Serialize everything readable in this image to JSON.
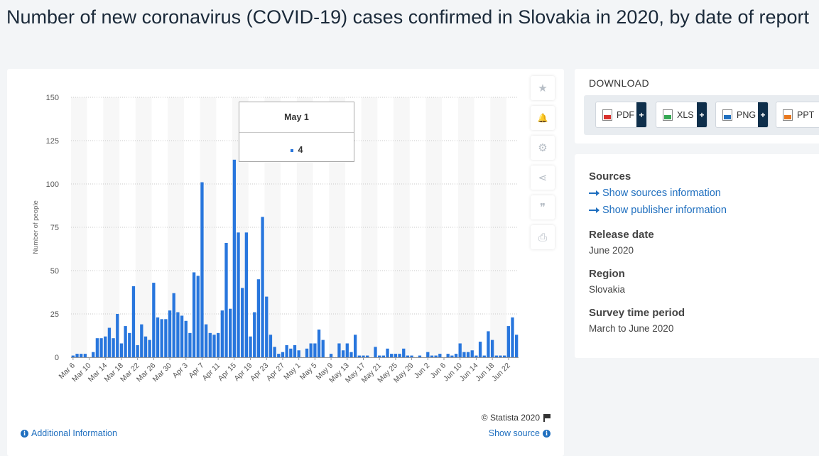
{
  "page": {
    "title": "Number of new coronavirus (COVID-19) cases confirmed in Slovakia in 2020, by date of report"
  },
  "chart_data": {
    "type": "bar",
    "title": "",
    "xlabel": "",
    "ylabel": "Number of people",
    "ylim": [
      0,
      150
    ],
    "yticks": [
      0,
      25,
      50,
      75,
      100,
      125,
      150
    ],
    "grid": true,
    "bar_color": "#2876dd",
    "tick_labels": [
      "Mar 6",
      "Mar 10",
      "Mar 14",
      "Mar 18",
      "Mar 22",
      "Mar 26",
      "Mar 30",
      "Apr 3",
      "Apr 7",
      "Apr 11",
      "Apr 15",
      "Apr 19",
      "Apr 23",
      "Apr 27",
      "May 1",
      "May 5",
      "May 9",
      "May 13",
      "May 17",
      "May 21",
      "May 25",
      "May 29",
      "Jun 2",
      "Jun 6",
      "Jun 10",
      "Jun 14",
      "Jun 18",
      "Jun 22"
    ],
    "categories": [
      "Mar 6",
      "Mar 7",
      "Mar 8",
      "Mar 9",
      "Mar 10",
      "Mar 11",
      "Mar 12",
      "Mar 13",
      "Mar 14",
      "Mar 15",
      "Mar 16",
      "Mar 17",
      "Mar 18",
      "Mar 19",
      "Mar 20",
      "Mar 21",
      "Mar 22",
      "Mar 23",
      "Mar 24",
      "Mar 25",
      "Mar 26",
      "Mar 27",
      "Mar 28",
      "Mar 29",
      "Mar 30",
      "Mar 31",
      "Apr 1",
      "Apr 2",
      "Apr 3",
      "Apr 4",
      "Apr 5",
      "Apr 6",
      "Apr 7",
      "Apr 8",
      "Apr 9",
      "Apr 10",
      "Apr 11",
      "Apr 12",
      "Apr 13",
      "Apr 14",
      "Apr 15",
      "Apr 16",
      "Apr 17",
      "Apr 18",
      "Apr 19",
      "Apr 20",
      "Apr 21",
      "Apr 22",
      "Apr 23",
      "Apr 24",
      "Apr 25",
      "Apr 26",
      "Apr 27",
      "Apr 28",
      "Apr 29",
      "Apr 30",
      "May 1",
      "May 2",
      "May 3",
      "May 4",
      "May 5",
      "May 6",
      "May 7",
      "May 8",
      "May 9",
      "May 10",
      "May 11",
      "May 12",
      "May 13",
      "May 14",
      "May 15",
      "May 16",
      "May 17",
      "May 18",
      "May 19",
      "May 20",
      "May 21",
      "May 22",
      "May 23",
      "May 24",
      "May 25",
      "May 26",
      "May 27",
      "May 28",
      "May 29",
      "May 30",
      "May 31",
      "Jun 1",
      "Jun 2",
      "Jun 3",
      "Jun 4",
      "Jun 5",
      "Jun 6",
      "Jun 7",
      "Jun 8",
      "Jun 9",
      "Jun 10",
      "Jun 11",
      "Jun 12",
      "Jun 13",
      "Jun 14",
      "Jun 15",
      "Jun 16",
      "Jun 17",
      "Jun 18",
      "Jun 19",
      "Jun 20",
      "Jun 21",
      "Jun 22",
      "Jun 23",
      "Jun 24"
    ],
    "values": [
      1,
      2,
      2,
      2,
      0,
      3,
      11,
      11,
      12,
      17,
      11,
      25,
      8,
      18,
      14,
      41,
      7,
      19,
      12,
      10,
      43,
      23,
      22,
      22,
      27,
      37,
      26,
      24,
      21,
      14,
      49,
      47,
      101,
      19,
      14,
      13,
      14,
      27,
      66,
      28,
      114,
      72,
      40,
      72,
      12,
      26,
      45,
      81,
      35,
      13,
      6,
      2,
      3,
      7,
      5,
      7,
      4,
      0,
      5,
      8,
      8,
      16,
      10,
      0,
      2,
      0,
      8,
      4,
      8,
      3,
      13,
      1,
      1,
      1,
      0,
      6,
      1,
      1,
      5,
      2,
      2,
      2,
      5,
      1,
      1,
      0,
      1,
      0,
      3,
      1,
      1,
      2,
      0,
      2,
      1,
      2,
      8,
      3,
      3,
      4,
      1,
      9,
      1,
      15,
      10,
      1,
      1,
      1,
      18,
      23,
      13
    ],
    "highlight": {
      "category": "May 1",
      "value": 4
    }
  },
  "tooltip": {
    "date": "May 1",
    "value": "4"
  },
  "toolbar": {
    "icons": [
      "star-icon",
      "bell-icon",
      "gear-icon",
      "share-icon",
      "quote-icon",
      "print-icon"
    ],
    "glyphs": [
      "★",
      "🔔",
      "⚙",
      "⋖",
      "❞",
      "⎙"
    ]
  },
  "credit": "© Statista 2020",
  "links": {
    "additional_info": "Additional Information",
    "show_source": "Show source"
  },
  "download": {
    "title": "DOWNLOAD",
    "buttons": [
      {
        "label": "PDF",
        "color": "#d9302b"
      },
      {
        "label": "XLS",
        "color": "#34a853"
      },
      {
        "label": "PNG",
        "color": "#1f6fbf"
      },
      {
        "label": "PPT",
        "color": "#e8781f"
      }
    ]
  },
  "info": {
    "sources_heading": "Sources",
    "show_sources": "Show sources information",
    "show_publisher": "Show publisher information",
    "release_heading": "Release date",
    "release_value": "June 2020",
    "region_heading": "Region",
    "region_value": "Slovakia",
    "period_heading": "Survey time period",
    "period_value": "March to June 2020"
  }
}
